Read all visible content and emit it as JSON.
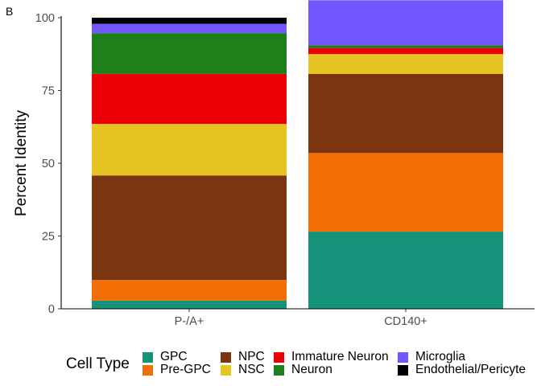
{
  "panel_label": "B",
  "chart_data": {
    "type": "bar",
    "stacked": true,
    "categories": [
      "P-/A+",
      "CD140+"
    ],
    "ylabel": "Percent Identity",
    "xlabel": "",
    "ylim": [
      0,
      100
    ],
    "yticks": [
      "0",
      "25",
      "50",
      "75",
      "100"
    ],
    "grid": false,
    "legend_title": "Cell Type",
    "legend_position": "bottom",
    "series": [
      {
        "name": "GPC",
        "color": "#14937A",
        "values": [
          2.8,
          26.5
        ]
      },
      {
        "name": "Pre-GPC",
        "color": "#F26F07",
        "values": [
          7.1,
          27.0
        ]
      },
      {
        "name": "NPC",
        "color": "#7B3511",
        "values": [
          35.9,
          27.2
        ]
      },
      {
        "name": "NSC",
        "color": "#E6C422",
        "values": [
          17.7,
          6.8
        ]
      },
      {
        "name": "Immature Neuron",
        "color": "#EB0005",
        "values": [
          17.2,
          2.1
        ]
      },
      {
        "name": "Neuron",
        "color": "#1F7F1B",
        "values": [
          14.0,
          0.9
        ]
      },
      {
        "name": "Microglia",
        "color": "#7256FE",
        "values": [
          3.2,
          15.5
        ]
      },
      {
        "name": "Endothelial/Pericyte",
        "color": "#000000",
        "values": [
          2.1,
          0.0
        ]
      }
    ]
  }
}
